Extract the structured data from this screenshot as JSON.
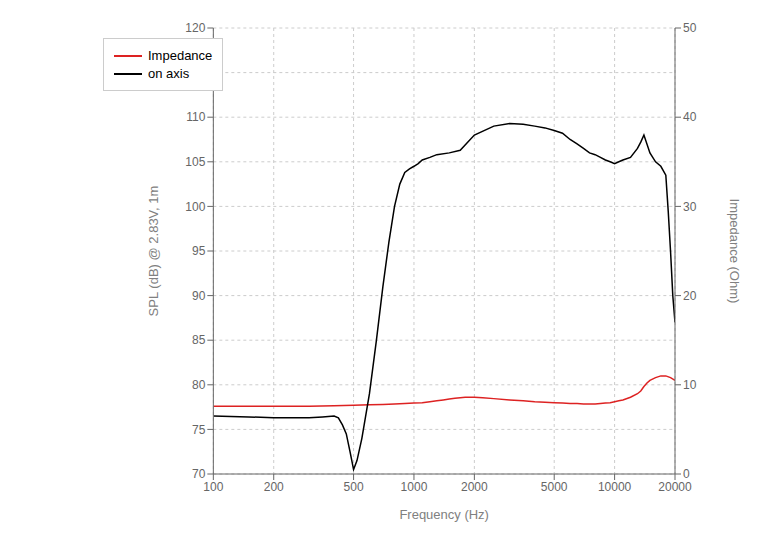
{
  "chart_data": {
    "type": "line",
    "log": "x",
    "grid": true,
    "legend": "upper left",
    "xlabel": "Frequency (Hz)",
    "ylabel": "SPL (dB) @ 2.83V, 1m",
    "y2label": "Impedance (Ohm)",
    "xlim": [
      100,
      20000
    ],
    "xticks": [
      100,
      200,
      500,
      1000,
      2000,
      5000,
      10000,
      20000
    ],
    "ylim": [
      70,
      120
    ],
    "yticks": [
      70,
      75,
      80,
      85,
      90,
      95,
      100,
      105,
      110,
      115,
      120
    ],
    "y2lim": [
      0,
      50
    ],
    "y2ticks": [
      0,
      10,
      20,
      30,
      40,
      50
    ],
    "series": [
      {
        "name": "Impedance",
        "color": "#dd2222",
        "axis": "y2",
        "x": [
          100,
          150,
          200,
          300,
          400,
          500,
          600,
          700,
          800,
          900,
          1000,
          1100,
          1200,
          1300,
          1400,
          1500,
          1600,
          1700,
          1800,
          2000,
          2200,
          2500,
          3000,
          3500,
          4000,
          4500,
          5000,
          5500,
          6000,
          6500,
          7000,
          7500,
          8000,
          8500,
          9000,
          9500,
          10000,
          10500,
          11000,
          12000,
          13000,
          13500,
          14000,
          14500,
          15000,
          16000,
          17000,
          18000,
          19000,
          20000
        ],
        "values": [
          7.6,
          7.6,
          7.6,
          7.6,
          7.65,
          7.7,
          7.75,
          7.8,
          7.85,
          7.9,
          7.95,
          8.0,
          8.1,
          8.2,
          8.3,
          8.4,
          8.5,
          8.55,
          8.6,
          8.6,
          8.55,
          8.45,
          8.3,
          8.2,
          8.1,
          8.05,
          8.0,
          7.95,
          7.9,
          7.9,
          7.85,
          7.85,
          7.85,
          7.9,
          7.95,
          8.0,
          8.1,
          8.2,
          8.3,
          8.6,
          9.0,
          9.3,
          9.8,
          10.2,
          10.5,
          10.8,
          11.0,
          11.0,
          10.8,
          10.5
        ]
      },
      {
        "name": "on axis",
        "color": "#000000",
        "x": [
          100,
          150,
          200,
          250,
          300,
          350,
          400,
          420,
          440,
          460,
          470,
          480,
          490,
          500,
          520,
          550,
          600,
          650,
          700,
          750,
          800,
          850,
          900,
          950,
          1000,
          1050,
          1100,
          1200,
          1300,
          1500,
          1700,
          2000,
          2500,
          3000,
          3500,
          4000,
          4500,
          5000,
          5500,
          6000,
          6500,
          7000,
          7500,
          8000,
          8500,
          9000,
          9500,
          10000,
          10500,
          11000,
          12000,
          13000,
          13500,
          14000,
          15000,
          16000,
          17000,
          18000,
          18500,
          19000,
          19500,
          20000
        ],
        "values": [
          76.5,
          76.4,
          76.3,
          76.3,
          76.3,
          76.4,
          76.5,
          76.3,
          75.5,
          74.5,
          73.5,
          72.5,
          71.5,
          70.5,
          71.5,
          74.0,
          79.0,
          85.0,
          91.0,
          96.0,
          100.0,
          102.5,
          103.8,
          104.2,
          104.5,
          104.8,
          105.2,
          105.5,
          105.8,
          106.0,
          106.3,
          108.0,
          109.0,
          109.3,
          109.2,
          109.0,
          108.8,
          108.5,
          108.2,
          107.5,
          107.0,
          106.5,
          106.0,
          105.8,
          105.5,
          105.2,
          105.0,
          104.8,
          105.0,
          105.2,
          105.5,
          106.5,
          107.2,
          108.0,
          106.0,
          105.0,
          104.5,
          103.5,
          99.5,
          95.0,
          90.0,
          87.0
        ]
      }
    ]
  }
}
